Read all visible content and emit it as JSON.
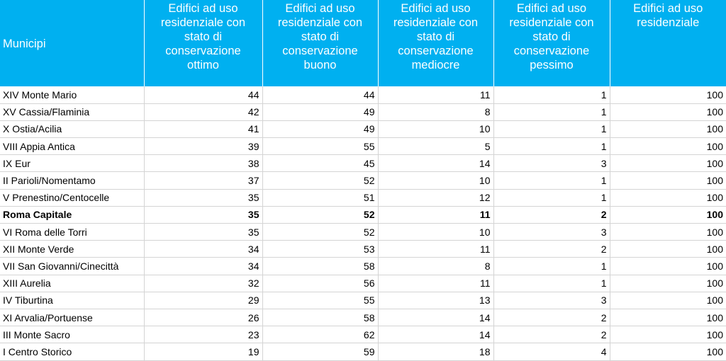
{
  "table": {
    "header": [
      "Municipi",
      "Edifici ad uso residenziale con stato di conservazione ottimo",
      "Edifici ad uso residenziale con stato di conservazione buono",
      "Edifici ad uso residenziale con stato di conservazione mediocre",
      "Edifici ad uso residenziale con stato di conservazione pessimo",
      "Edifici ad uso residenziale"
    ],
    "rows": [
      [
        "XIV Monte Mario",
        44,
        44,
        11,
        1,
        100
      ],
      [
        "XV Cassia/Flaminia",
        42,
        49,
        8,
        1,
        100
      ],
      [
        "X Ostia/Acilia",
        41,
        49,
        10,
        1,
        100
      ],
      [
        "VIII Appia Antica",
        39,
        55,
        5,
        1,
        100
      ],
      [
        "IX Eur",
        38,
        45,
        14,
        3,
        100
      ],
      [
        "II Parioli/Nomentamo",
        37,
        52,
        10,
        1,
        100
      ],
      [
        "V Prenestino/Centocelle",
        35,
        51,
        12,
        1,
        100
      ],
      [
        "Roma Capitale",
        35,
        52,
        11,
        2,
        100
      ],
      [
        "VI Roma delle Torri",
        35,
        52,
        10,
        3,
        100
      ],
      [
        "XII Monte Verde",
        34,
        53,
        11,
        2,
        100
      ],
      [
        "VII San Giovanni/Cinecittà",
        34,
        58,
        8,
        1,
        100
      ],
      [
        "XIII Aurelia",
        32,
        56,
        11,
        1,
        100
      ],
      [
        "IV Tiburtina",
        29,
        55,
        13,
        3,
        100
      ],
      [
        "XI Arvalia/Portuense",
        26,
        58,
        14,
        2,
        100
      ],
      [
        "III Monte Sacro",
        23,
        62,
        14,
        2,
        100
      ],
      [
        "I Centro Storico",
        19,
        59,
        18,
        4,
        100
      ]
    ]
  }
}
